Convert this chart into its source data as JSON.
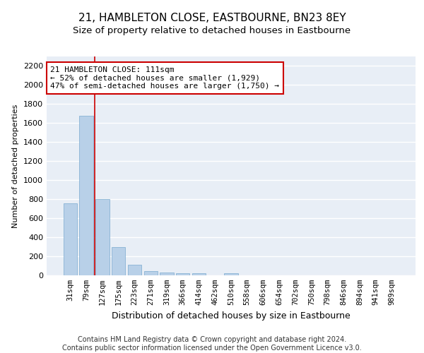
{
  "title": "21, HAMBLETON CLOSE, EASTBOURNE, BN23 8EY",
  "subtitle": "Size of property relative to detached houses in Eastbourne",
  "xlabel": "Distribution of detached houses by size in Eastbourne",
  "ylabel": "Number of detached properties",
  "bar_color": "#b8d0e8",
  "bar_edge_color": "#7aaacf",
  "background_color": "#e8eef6",
  "grid_color": "#ffffff",
  "categories": [
    "31sqm",
    "79sqm",
    "127sqm",
    "175sqm",
    "223sqm",
    "271sqm",
    "319sqm",
    "366sqm",
    "414sqm",
    "462sqm",
    "510sqm",
    "558sqm",
    "606sqm",
    "654sqm",
    "702sqm",
    "750sqm",
    "798sqm",
    "846sqm",
    "894sqm",
    "941sqm",
    "989sqm"
  ],
  "values": [
    760,
    1680,
    800,
    300,
    110,
    45,
    30,
    25,
    20,
    0,
    20,
    0,
    0,
    0,
    0,
    0,
    0,
    0,
    0,
    0,
    0
  ],
  "ylim": [
    0,
    2300
  ],
  "yticks": [
    0,
    200,
    400,
    600,
    800,
    1000,
    1200,
    1400,
    1600,
    1800,
    2000,
    2200
  ],
  "vline_color": "#cc0000",
  "vline_x": 1.5,
  "annotation_box_text": "21 HAMBLETON CLOSE: 111sqm\n← 52% of detached houses are smaller (1,929)\n47% of semi-detached houses are larger (1,750) →",
  "footer_line1": "Contains HM Land Registry data © Crown copyright and database right 2024.",
  "footer_line2": "Contains public sector information licensed under the Open Government Licence v3.0.",
  "title_fontsize": 11,
  "subtitle_fontsize": 9.5,
  "xlabel_fontsize": 9,
  "ylabel_fontsize": 8,
  "tick_fontsize": 7.5,
  "ytick_fontsize": 8,
  "annotation_fontsize": 8,
  "footer_fontsize": 7
}
